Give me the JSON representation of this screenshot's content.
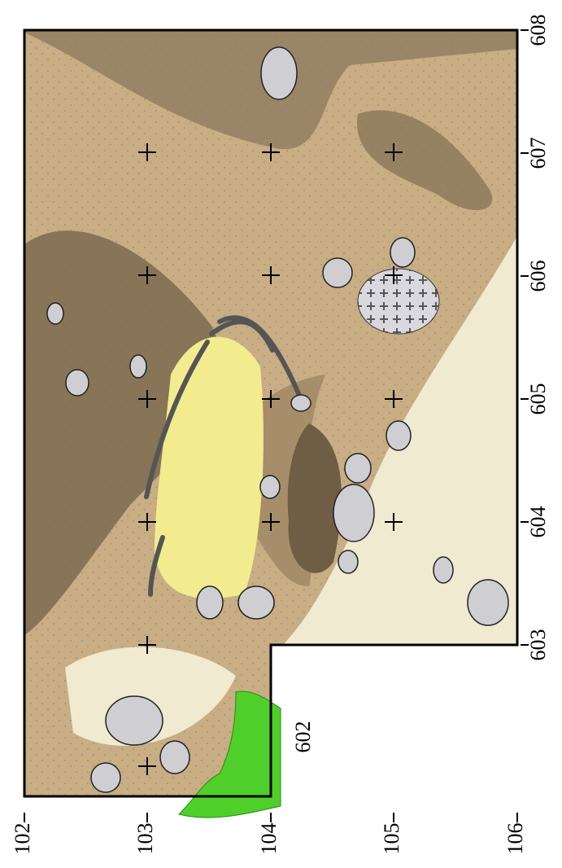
{
  "axes": {
    "bottom_labels": [
      "102",
      "103",
      "104",
      "105",
      "106"
    ],
    "right_labels": [
      "608",
      "607",
      "606",
      "605",
      "604",
      "603"
    ]
  },
  "annotations": {
    "area_label": "602"
  }
}
